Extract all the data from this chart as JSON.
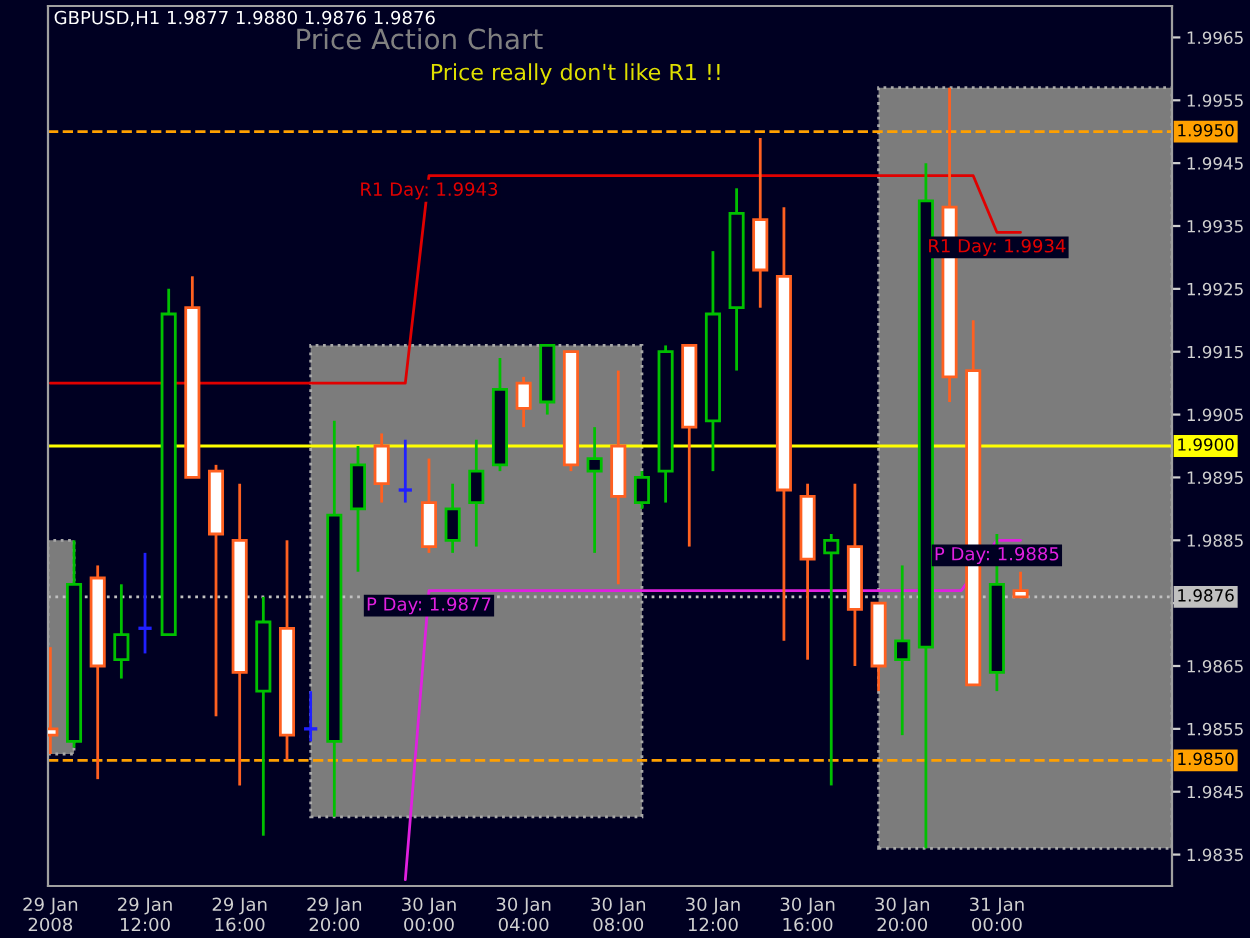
{
  "chart_data": {
    "type": "candlestick",
    "title": "Price Action Chart",
    "subtitle": "GBPUSD,H1 1.9877 1.9880 1.9876 1.9876",
    "annotations": [
      "Price really don't like R1 !!",
      {
        "text": "R1 Day: 1.9943",
        "x": "2008-01-30T00:00",
        "y": 1.9943
      },
      {
        "text": "R1 Day: 1.9934",
        "x": "2008-01-31T00:00",
        "y": 1.9934
      },
      {
        "text": "P Day: 1.9877",
        "x": "2008-01-30T00:00",
        "y": 1.9877
      },
      {
        "text": "P Day: 1.9885",
        "x": "2008-01-31T00:00",
        "y": 1.9885
      }
    ],
    "x": [
      "2008-01-29T08:00",
      "2008-01-29T09:00",
      "2008-01-29T10:00",
      "2008-01-29T11:00",
      "2008-01-29T12:00",
      "2008-01-29T13:00",
      "2008-01-29T14:00",
      "2008-01-29T15:00",
      "2008-01-29T16:00",
      "2008-01-29T17:00",
      "2008-01-29T18:00",
      "2008-01-29T19:00",
      "2008-01-29T20:00",
      "2008-01-29T21:00",
      "2008-01-29T22:00",
      "2008-01-29T23:00",
      "2008-01-30T00:00",
      "2008-01-30T01:00",
      "2008-01-30T02:00",
      "2008-01-30T03:00",
      "2008-01-30T04:00",
      "2008-01-30T05:00",
      "2008-01-30T06:00",
      "2008-01-30T07:00",
      "2008-01-30T08:00",
      "2008-01-30T09:00",
      "2008-01-30T10:00",
      "2008-01-30T11:00",
      "2008-01-30T12:00",
      "2008-01-30T13:00",
      "2008-01-30T14:00",
      "2008-01-30T15:00",
      "2008-01-30T16:00",
      "2008-01-30T17:00",
      "2008-01-30T18:00",
      "2008-01-30T19:00",
      "2008-01-30T20:00",
      "2008-01-30T21:00",
      "2008-01-30T22:00",
      "2008-01-30T23:00",
      "2008-01-31T00:00",
      "2008-01-31T01:00"
    ],
    "ohlc": [
      [
        1.9855,
        1.9868,
        1.9851,
        1.9854
      ],
      [
        1.9853,
        1.9885,
        1.9852,
        1.9878
      ],
      [
        1.9879,
        1.9881,
        1.9847,
        1.9865
      ],
      [
        1.9866,
        1.9878,
        1.9863,
        1.987
      ],
      [
        1.9871,
        1.9883,
        1.9867,
        1.9871
      ],
      [
        1.987,
        1.9925,
        1.987,
        1.9921
      ],
      [
        1.9922,
        1.9927,
        1.9895,
        1.9895
      ],
      [
        1.9896,
        1.9897,
        1.9857,
        1.9886
      ],
      [
        1.9885,
        1.9894,
        1.9846,
        1.9864
      ],
      [
        1.9861,
        1.9876,
        1.9838,
        1.9872
      ],
      [
        1.9871,
        1.9885,
        1.985,
        1.9854
      ],
      [
        1.9855,
        1.9861,
        1.9853,
        1.9855
      ],
      [
        1.9853,
        1.9904,
        1.9841,
        1.9889
      ],
      [
        1.989,
        1.99,
        1.988,
        1.9897
      ],
      [
        1.99,
        1.9902,
        1.9891,
        1.9894
      ],
      [
        1.9893,
        1.9901,
        1.9891,
        1.9893
      ],
      [
        1.9891,
        1.9898,
        1.9883,
        1.9884
      ],
      [
        1.9885,
        1.9894,
        1.9883,
        1.989
      ],
      [
        1.9891,
        1.9901,
        1.9884,
        1.9896
      ],
      [
        1.9897,
        1.9914,
        1.9896,
        1.9909
      ],
      [
        1.991,
        1.9911,
        1.9903,
        1.9906
      ],
      [
        1.9907,
        1.9916,
        1.9905,
        1.9916
      ],
      [
        1.9915,
        1.9915,
        1.9896,
        1.9897
      ],
      [
        1.9896,
        1.9903,
        1.9883,
        1.9898
      ],
      [
        1.99,
        1.9912,
        1.9878,
        1.9892
      ],
      [
        1.9891,
        1.9896,
        1.989,
        1.9895
      ],
      [
        1.9896,
        1.9916,
        1.9891,
        1.9915
      ],
      [
        1.9916,
        1.9916,
        1.9884,
        1.9903
      ],
      [
        1.9904,
        1.9931,
        1.9896,
        1.9921
      ],
      [
        1.9922,
        1.9941,
        1.9912,
        1.9937
      ],
      [
        1.9936,
        1.9949,
        1.9922,
        1.9928
      ],
      [
        1.9927,
        1.9938,
        1.9869,
        1.9893
      ],
      [
        1.9892,
        1.9894,
        1.9866,
        1.9882
      ],
      [
        1.9883,
        1.9886,
        1.9846,
        1.9885
      ],
      [
        1.9884,
        1.9894,
        1.9865,
        1.9874
      ],
      [
        1.9875,
        1.9875,
        1.9861,
        1.9865
      ],
      [
        1.9866,
        1.9881,
        1.9854,
        1.9869
      ],
      [
        1.9868,
        1.9945,
        1.9836,
        1.9939
      ],
      [
        1.9938,
        1.9957,
        1.9907,
        1.9911
      ],
      [
        1.9912,
        1.992,
        1.9862,
        1.9862
      ],
      [
        1.9864,
        1.9886,
        1.9861,
        1.9878
      ],
      [
        1.9877,
        1.988,
        1.9876,
        1.9876
      ]
    ],
    "colors": [
      "#ff6020",
      "#00c000",
      "#ff6020",
      "#00c000",
      "#2020ff",
      "#00c000",
      "#ff6020",
      "#ff6020",
      "#ff6020",
      "#00c000",
      "#ff6020",
      "#2020ff",
      "#00c000",
      "#00c000",
      "#ff6020",
      "#2020ff",
      "#ff6020",
      "#00c000",
      "#00c000",
      "#00c000",
      "#ff6020",
      "#00c000",
      "#ff6020",
      "#00c000",
      "#ff6020",
      "#00c000",
      "#00c000",
      "#ff6020",
      "#00c000",
      "#00c000",
      "#ff6020",
      "#ff6020",
      "#ff6020",
      "#00c000",
      "#ff6020",
      "#ff6020",
      "#00c000",
      "#00c000",
      "#ff6020",
      "#ff6020",
      "#00c000",
      "#ff6020"
    ],
    "series": [
      {
        "type": "line",
        "color": "#e00000",
        "x": [
          "2008-01-29T08:00",
          "2008-01-29T23:00",
          "2008-01-30T00:00",
          "2008-01-30T23:00",
          "2008-01-31T00:00",
          "2008-01-31T01:00"
        ],
        "values": [
          1.991,
          1.991,
          1.9943,
          1.9943,
          1.9934,
          1.9934
        ]
      },
      {
        "type": "line",
        "color": "#e020e0",
        "x": [
          "2008-01-29T23:00",
          "2008-01-30T00:00",
          "2008-01-30T22:30",
          "2008-01-31T00:00",
          "2008-01-31T01:00"
        ],
        "values": [
          1.9831,
          1.9877,
          1.9877,
          1.9885,
          1.9885
        ]
      }
    ],
    "bands": [
      {
        "axis": "x",
        "from": "2008-01-29T07:54",
        "to": "2008-01-29T09:00",
        "color": "#7c7c7c"
      },
      {
        "axis": "x",
        "from": "2008-01-29T19:00",
        "to": "2008-01-30T09:00",
        "color": "#7c7c7c"
      },
      {
        "axis": "x",
        "from": "2008-01-30T19:00",
        "to": "2008-01-31T07:24",
        "color": "#7c7c7c"
      }
    ],
    "ref_lines": [
      {
        "axis": "y",
        "value": 1.995,
        "label": "1.9950",
        "color": "#ffa000",
        "line_style": "dashed"
      },
      {
        "axis": "y",
        "value": 1.99,
        "label": "1.9900",
        "color": "#ffff00",
        "line_style": "solid"
      },
      {
        "axis": "y",
        "value": 1.9876,
        "label": "1.9876",
        "color": "#c0c0c0",
        "line_style": "dotted"
      },
      {
        "axis": "y",
        "value": 1.985,
        "label": "1.9850",
        "color": "#ffa000",
        "line_style": "dashed"
      }
    ],
    "xlim": [
      "2008-01-29T07:54",
      "2008-01-31T07:24"
    ],
    "xticks": [
      {
        "value": "2008-01-29T08:00",
        "label": "29 Jan 2008"
      },
      {
        "value": "2008-01-29T12:00",
        "label": "29 Jan 12:00"
      },
      {
        "value": "2008-01-29T16:00",
        "label": "29 Jan 16:00"
      },
      {
        "value": "2008-01-29T20:00",
        "label": "29 Jan 20:00"
      },
      {
        "value": "2008-01-30T00:00",
        "label": "30 Jan 00:00"
      },
      {
        "value": "2008-01-30T04:00",
        "label": "30 Jan 04:00"
      },
      {
        "value": "2008-01-30T08:00",
        "label": "30 Jan 08:00"
      },
      {
        "value": "2008-01-30T12:00",
        "label": "30 Jan 12:00"
      },
      {
        "value": "2008-01-30T16:00",
        "label": "30 Jan 16:00"
      },
      {
        "value": "2008-01-30T20:00",
        "label": "30 Jan 20:00"
      },
      {
        "value": "2008-01-31T00:00",
        "label": "31 Jan 00:00"
      }
    ],
    "ylim": [
      1.983,
      1.997
    ],
    "yticks": [
      1.9835,
      1.9845,
      1.9855,
      1.9865,
      {
        "value": 1.9875,
        "label": null
      },
      1.9885,
      1.9895,
      1.9905,
      1.9915,
      1.9925,
      1.9935,
      1.9945,
      1.9955,
      1.9965
    ],
    "grid": false
  }
}
